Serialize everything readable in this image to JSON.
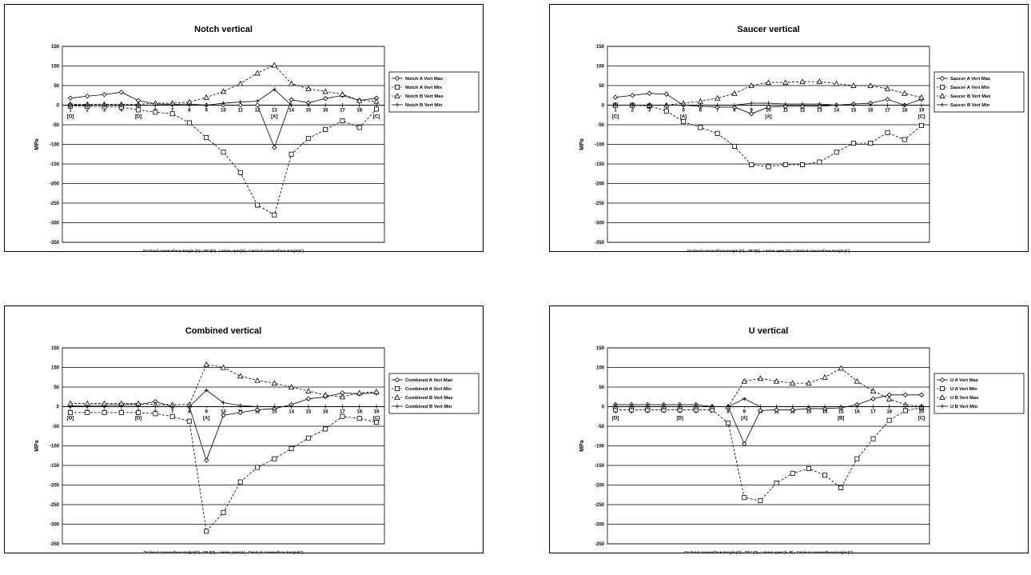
{
  "chart_data": [
    {
      "type": "line",
      "title": "Notch vertical",
      "xlabel": "Occlusal cavosurface margin (O) - DEJ(D) - Lesion apex(A) - Cervical cavosurface margin(C)",
      "ylabel": "MPa",
      "ylim": [
        -350,
        150
      ],
      "yticks": [
        150,
        100,
        50,
        0,
        -50,
        -100,
        -150,
        -200,
        -250,
        -300,
        -350
      ],
      "x": [
        1,
        2,
        3,
        4,
        5,
        6,
        7,
        8,
        9,
        10,
        11,
        12,
        13,
        14,
        15,
        16,
        17,
        18,
        19
      ],
      "annotations": [
        {
          "x": 1,
          "text": "[O]"
        },
        {
          "x": 5,
          "text": "[D]"
        },
        {
          "x": 13,
          "text": "[A]"
        },
        {
          "x": 19,
          "text": "[C]"
        }
      ],
      "legend_position": "right",
      "series": [
        {
          "name": "Notch A Vert Max",
          "marker": "diamond",
          "dashed": false,
          "values": [
            18,
            23,
            27,
            33,
            12,
            3,
            2,
            3,
            0,
            0,
            0,
            0,
            -108,
            14,
            6,
            17,
            25,
            12,
            18
          ]
        },
        {
          "name": "Notch A Vert Min",
          "marker": "square",
          "dashed": true,
          "values": [
            -2,
            -3,
            -4,
            -5,
            -12,
            -18,
            -22,
            -45,
            -83,
            -120,
            -172,
            -255,
            -280,
            -125,
            -85,
            -62,
            -40,
            -57,
            -10
          ]
        },
        {
          "name": "Notch B Vert Max",
          "marker": "triangle",
          "dashed": true,
          "values": [
            2,
            2,
            2,
            2,
            2,
            5,
            5,
            8,
            20,
            35,
            55,
            82,
            102,
            55,
            42,
            35,
            28,
            12,
            10
          ]
        },
        {
          "name": "Notch B Vert Min",
          "marker": "cross",
          "dashed": false,
          "values": [
            0,
            0,
            0,
            0,
            0,
            0,
            0,
            0,
            0,
            5,
            8,
            10,
            40,
            0,
            0,
            0,
            0,
            0,
            0
          ]
        }
      ]
    },
    {
      "type": "line",
      "title": "Saucer vertical",
      "xlabel": "Occlusal cavosurface margin (O) - DEJ(D) - Lesion apex (A) - Cervical cavosurface margin (C)",
      "ylabel": "MPa",
      "ylim": [
        -350,
        150
      ],
      "yticks": [
        150,
        100,
        50,
        0,
        -50,
        -100,
        -150,
        -200,
        -250,
        -300,
        -350
      ],
      "x": [
        1,
        2,
        3,
        4,
        5,
        6,
        7,
        8,
        9,
        10,
        11,
        12,
        13,
        14,
        15,
        16,
        17,
        18,
        19
      ],
      "annotations": [
        {
          "x": 1,
          "text": "[C]"
        },
        {
          "x": 5,
          "text": "[A]"
        },
        {
          "x": 10,
          "text": "[A]"
        },
        {
          "x": 19,
          "text": "[C]"
        }
      ],
      "legend_position": "right",
      "series": [
        {
          "name": "Saucer A Vert Max",
          "marker": "diamond",
          "dashed": false,
          "values": [
            20,
            25,
            30,
            28,
            0,
            -3,
            -5,
            -5,
            -22,
            -5,
            -3,
            -3,
            -3,
            0,
            3,
            5,
            15,
            0,
            15
          ]
        },
        {
          "name": "Saucer A Vert Min",
          "marker": "square",
          "dashed": true,
          "values": [
            0,
            0,
            -2,
            -15,
            -42,
            -57,
            -72,
            -105,
            -152,
            -157,
            -152,
            -152,
            -145,
            -120,
            -97,
            -97,
            -70,
            -88,
            -52
          ]
        },
        {
          "name": "Saucer B Vert Max",
          "marker": "triangle",
          "dashed": true,
          "values": [
            0,
            0,
            0,
            0,
            5,
            10,
            18,
            30,
            50,
            58,
            58,
            60,
            60,
            55,
            50,
            50,
            42,
            30,
            20
          ]
        },
        {
          "name": "Saucer B Vert Min",
          "marker": "cross",
          "dashed": false,
          "values": [
            0,
            0,
            0,
            0,
            0,
            0,
            0,
            0,
            5,
            5,
            3,
            3,
            3,
            0,
            0,
            0,
            0,
            0,
            0
          ]
        }
      ]
    },
    {
      "type": "line",
      "title": "Combined vertical",
      "xlabel": "Occlusal cavosurface margin(O) - DEJ(D) - Lesion apex(A) - Cervical cavosurface margin(C)",
      "ylabel": "MPa",
      "ylim": [
        -350,
        150
      ],
      "yticks": [
        150,
        100,
        50,
        0,
        -50,
        -100,
        -150,
        -200,
        -250,
        -300,
        -350
      ],
      "x": [
        1,
        2,
        3,
        4,
        5,
        6,
        7,
        8,
        9,
        10,
        11,
        12,
        13,
        14,
        15,
        16,
        17,
        18,
        19
      ],
      "annotations": [
        {
          "x": 1,
          "text": "[O]"
        },
        {
          "x": 5,
          "text": "[D]"
        },
        {
          "x": 9,
          "text": "[A]"
        },
        {
          "x": 19,
          "text": "[C]"
        }
      ],
      "legend_position": "right",
      "series": [
        {
          "name": "Combined A Vert Max",
          "marker": "diamond",
          "dashed": false,
          "values": [
            2,
            3,
            3,
            5,
            5,
            13,
            0,
            0,
            -137,
            -22,
            -15,
            -8,
            -5,
            5,
            20,
            25,
            35,
            33,
            35
          ]
        },
        {
          "name": "Combined A Vert Min",
          "marker": "square",
          "dashed": true,
          "values": [
            -15,
            -15,
            -15,
            -15,
            -15,
            -18,
            -25,
            -37,
            -318,
            -270,
            -192,
            -155,
            -133,
            -107,
            -80,
            -57,
            -25,
            -30,
            -40
          ]
        },
        {
          "name": "Combined B Vert Max",
          "marker": "triangle",
          "dashed": true,
          "values": [
            8,
            8,
            8,
            8,
            8,
            5,
            5,
            5,
            108,
            100,
            78,
            67,
            60,
            50,
            40,
            30,
            25,
            35,
            38
          ]
        },
        {
          "name": "Combined B Vert Min",
          "marker": "cross",
          "dashed": false,
          "values": [
            0,
            0,
            0,
            0,
            0,
            0,
            0,
            0,
            42,
            10,
            3,
            0,
            0,
            0,
            0,
            0,
            0,
            0,
            0
          ]
        }
      ]
    },
    {
      "type": "line",
      "title": "U vertical",
      "xlabel": "Occlusal cavosurface margin (O) - DEJ (D) - Lesion apex (A, B) - Cervical cavosurface margin (C)",
      "ylabel": "MPa",
      "ylim": [
        -350,
        150
      ],
      "yticks": [
        150,
        100,
        50,
        0,
        -50,
        -100,
        -150,
        -200,
        -250,
        -300,
        -350
      ],
      "x": [
        1,
        2,
        3,
        4,
        5,
        6,
        7,
        8,
        9,
        10,
        11,
        12,
        13,
        14,
        15,
        16,
        17,
        18,
        19,
        20
      ],
      "annotations": [
        {
          "x": 1,
          "text": "[O]"
        },
        {
          "x": 5,
          "text": "[D]"
        },
        {
          "x": 9,
          "text": "[A]"
        },
        {
          "x": 15,
          "text": "[B]"
        },
        {
          "x": 20,
          "text": "[C]"
        }
      ],
      "legend_position": "right",
      "series": [
        {
          "name": "U A Vert Max",
          "marker": "diamond",
          "dashed": false,
          "values": [
            5,
            5,
            5,
            5,
            5,
            5,
            0,
            0,
            -95,
            -10,
            -8,
            -8,
            -5,
            -5,
            -3,
            5,
            20,
            30,
            30,
            30
          ]
        },
        {
          "name": "U A Vert Min",
          "marker": "square",
          "dashed": true,
          "values": [
            -8,
            -8,
            -8,
            -8,
            -8,
            -8,
            -8,
            -42,
            -232,
            -240,
            -195,
            -170,
            -158,
            -175,
            -207,
            -133,
            -82,
            -35,
            -10,
            -3
          ]
        },
        {
          "name": "U B Vert Max",
          "marker": "triangle",
          "dashed": true,
          "values": [
            0,
            0,
            0,
            0,
            0,
            0,
            0,
            0,
            65,
            72,
            65,
            60,
            60,
            75,
            98,
            65,
            40,
            20,
            5,
            0
          ]
        },
        {
          "name": "U B Vert Min",
          "marker": "cross",
          "dashed": false,
          "values": [
            0,
            0,
            0,
            0,
            0,
            0,
            0,
            0,
            20,
            0,
            0,
            0,
            0,
            0,
            0,
            0,
            0,
            0,
            0,
            0
          ]
        }
      ]
    }
  ]
}
